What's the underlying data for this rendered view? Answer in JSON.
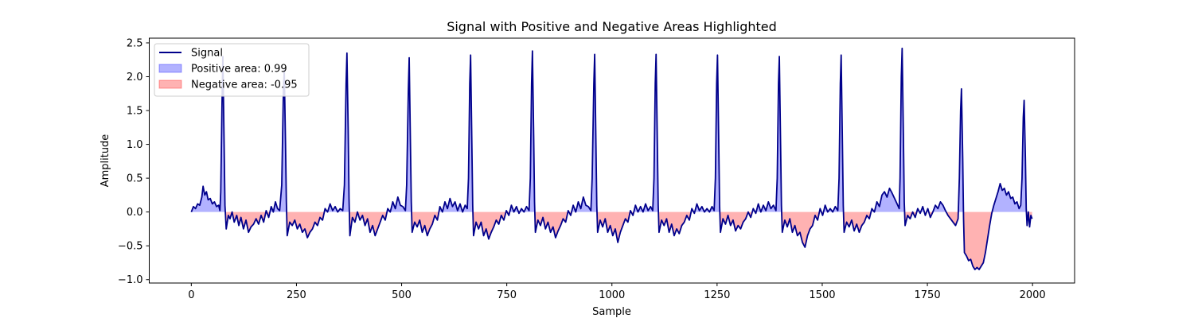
{
  "chart_data": {
    "type": "line",
    "title": "Signal with Positive and Negative Areas Highlighted",
    "xlabel": "Sample",
    "ylabel": "Amplitude",
    "xlim": [
      -100,
      2100
    ],
    "ylim": [
      -1.05,
      2.57
    ],
    "xticks": [
      0,
      250,
      500,
      750,
      1000,
      1250,
      1500,
      1750,
      2000
    ],
    "yticks": [
      -1.0,
      -0.5,
      0.0,
      0.5,
      1.0,
      1.5,
      2.0,
      2.5
    ],
    "legend_position": "upper-left",
    "colors": {
      "line": "#00008b",
      "positive_fill": "#0000ff",
      "negative_fill": "#ff0000"
    },
    "series": [
      {
        "name": "Signal",
        "kind": "line"
      },
      {
        "name": "Positive area: 0.99",
        "kind": "positive-fill"
      },
      {
        "name": "Negative area: -0.95",
        "kind": "negative-fill"
      }
    ],
    "baseline": 0,
    "points": [
      [
        0,
        0.0
      ],
      [
        5,
        0.08
      ],
      [
        10,
        0.05
      ],
      [
        15,
        0.12
      ],
      [
        20,
        0.1
      ],
      [
        25,
        0.22
      ],
      [
        28,
        0.38
      ],
      [
        32,
        0.25
      ],
      [
        36,
        0.3
      ],
      [
        40,
        0.18
      ],
      [
        45,
        0.2
      ],
      [
        50,
        0.12
      ],
      [
        55,
        0.15
      ],
      [
        60,
        0.08
      ],
      [
        65,
        0.1
      ],
      [
        68,
        0.02
      ],
      [
        70,
        0.3
      ],
      [
        73,
        1.6
      ],
      [
        75,
        2.3
      ],
      [
        78,
        1.0
      ],
      [
        80,
        0.1
      ],
      [
        83,
        -0.25
      ],
      [
        88,
        -0.05
      ],
      [
        92,
        -0.1
      ],
      [
        97,
        0.0
      ],
      [
        102,
        -0.15
      ],
      [
        108,
        -0.05
      ],
      [
        113,
        -0.2
      ],
      [
        118,
        -0.08
      ],
      [
        124,
        -0.25
      ],
      [
        130,
        -0.12
      ],
      [
        136,
        -0.3
      ],
      [
        142,
        -0.22
      ],
      [
        148,
        -0.18
      ],
      [
        154,
        -0.1
      ],
      [
        160,
        -0.18
      ],
      [
        166,
        -0.05
      ],
      [
        172,
        -0.15
      ],
      [
        178,
        0.02
      ],
      [
        184,
        -0.08
      ],
      [
        190,
        0.08
      ],
      [
        195,
        0.0
      ],
      [
        200,
        0.15
      ],
      [
        205,
        0.05
      ],
      [
        210,
        0.02
      ],
      [
        215,
        0.4
      ],
      [
        219,
        1.8
      ],
      [
        221,
        2.1
      ],
      [
        224,
        1.0
      ],
      [
        226,
        0.15
      ],
      [
        228,
        -0.35
      ],
      [
        234,
        -0.15
      ],
      [
        240,
        -0.2
      ],
      [
        246,
        -0.12
      ],
      [
        252,
        -0.25
      ],
      [
        258,
        -0.18
      ],
      [
        264,
        -0.3
      ],
      [
        270,
        -0.25
      ],
      [
        276,
        -0.38
      ],
      [
        282,
        -0.3
      ],
      [
        288,
        -0.25
      ],
      [
        294,
        -0.15
      ],
      [
        300,
        -0.2
      ],
      [
        306,
        -0.08
      ],
      [
        312,
        -0.12
      ],
      [
        318,
        0.05
      ],
      [
        324,
        0.0
      ],
      [
        330,
        0.12
      ],
      [
        336,
        0.02
      ],
      [
        342,
        0.08
      ],
      [
        348,
        0.0
      ],
      [
        354,
        0.05
      ],
      [
        360,
        0.02
      ],
      [
        364,
        0.4
      ],
      [
        368,
        1.9
      ],
      [
        370,
        2.35
      ],
      [
        373,
        1.2
      ],
      [
        375,
        0.2
      ],
      [
        377,
        -0.35
      ],
      [
        383,
        -0.08
      ],
      [
        389,
        -0.15
      ],
      [
        395,
        0.0
      ],
      [
        401,
        -0.12
      ],
      [
        407,
        -0.05
      ],
      [
        413,
        -0.2
      ],
      [
        419,
        -0.1
      ],
      [
        425,
        -0.3
      ],
      [
        431,
        -0.2
      ],
      [
        437,
        -0.35
      ],
      [
        443,
        -0.25
      ],
      [
        449,
        -0.15
      ],
      [
        455,
        -0.05
      ],
      [
        461,
        -0.12
      ],
      [
        467,
        0.05
      ],
      [
        473,
        0.0
      ],
      [
        479,
        0.15
      ],
      [
        485,
        0.05
      ],
      [
        491,
        0.22
      ],
      [
        497,
        0.1
      ],
      [
        503,
        0.08
      ],
      [
        509,
        0.02
      ],
      [
        512,
        0.4
      ],
      [
        516,
        1.8
      ],
      [
        518,
        2.28
      ],
      [
        521,
        1.0
      ],
      [
        523,
        0.15
      ],
      [
        525,
        -0.3
      ],
      [
        531,
        -0.15
      ],
      [
        537,
        -0.22
      ],
      [
        543,
        -0.12
      ],
      [
        549,
        -0.3
      ],
      [
        555,
        -0.2
      ],
      [
        561,
        -0.35
      ],
      [
        567,
        -0.25
      ],
      [
        573,
        -0.18
      ],
      [
        579,
        -0.05
      ],
      [
        585,
        -0.12
      ],
      [
        591,
        0.08
      ],
      [
        597,
        0.0
      ],
      [
        603,
        0.15
      ],
      [
        609,
        0.05
      ],
      [
        615,
        0.2
      ],
      [
        621,
        0.08
      ],
      [
        627,
        0.15
      ],
      [
        633,
        0.02
      ],
      [
        639,
        0.12
      ],
      [
        645,
        0.0
      ],
      [
        651,
        0.1
      ],
      [
        656,
        0.05
      ],
      [
        659,
        0.5
      ],
      [
        662,
        1.9
      ],
      [
        664,
        2.32
      ],
      [
        667,
        1.0
      ],
      [
        669,
        0.1
      ],
      [
        671,
        -0.35
      ],
      [
        677,
        -0.15
      ],
      [
        683,
        -0.25
      ],
      [
        689,
        -0.15
      ],
      [
        695,
        -0.35
      ],
      [
        701,
        -0.25
      ],
      [
        707,
        -0.4
      ],
      [
        713,
        -0.3
      ],
      [
        719,
        -0.22
      ],
      [
        725,
        -0.12
      ],
      [
        731,
        -0.18
      ],
      [
        737,
        -0.05
      ],
      [
        743,
        -0.12
      ],
      [
        749,
        0.02
      ],
      [
        755,
        -0.05
      ],
      [
        761,
        0.1
      ],
      [
        767,
        0.0
      ],
      [
        773,
        0.08
      ],
      [
        779,
        -0.02
      ],
      [
        785,
        0.05
      ],
      [
        791,
        0.0
      ],
      [
        797,
        0.08
      ],
      [
        803,
        0.02
      ],
      [
        806,
        0.5
      ],
      [
        809,
        1.9
      ],
      [
        811,
        2.38
      ],
      [
        814,
        1.1
      ],
      [
        816,
        0.15
      ],
      [
        818,
        -0.3
      ],
      [
        824,
        -0.12
      ],
      [
        830,
        -0.2
      ],
      [
        836,
        -0.08
      ],
      [
        842,
        -0.25
      ],
      [
        848,
        -0.15
      ],
      [
        854,
        -0.3
      ],
      [
        860,
        -0.22
      ],
      [
        866,
        -0.38
      ],
      [
        872,
        -0.28
      ],
      [
        878,
        -0.2
      ],
      [
        884,
        -0.1
      ],
      [
        890,
        -0.15
      ],
      [
        896,
        0.02
      ],
      [
        902,
        -0.05
      ],
      [
        908,
        0.1
      ],
      [
        914,
        0.0
      ],
      [
        920,
        0.15
      ],
      [
        926,
        0.05
      ],
      [
        932,
        0.22
      ],
      [
        938,
        0.1
      ],
      [
        944,
        0.08
      ],
      [
        950,
        0.02
      ],
      [
        953,
        0.5
      ],
      [
        957,
        1.9
      ],
      [
        959,
        2.33
      ],
      [
        962,
        1.0
      ],
      [
        964,
        0.1
      ],
      [
        966,
        -0.3
      ],
      [
        972,
        -0.12
      ],
      [
        978,
        -0.22
      ],
      [
        984,
        -0.1
      ],
      [
        990,
        -0.3
      ],
      [
        996,
        -0.2
      ],
      [
        1002,
        -0.35
      ],
      [
        1008,
        -0.25
      ],
      [
        1014,
        -0.45
      ],
      [
        1020,
        -0.3
      ],
      [
        1026,
        -0.2
      ],
      [
        1032,
        -0.1
      ],
      [
        1038,
        -0.15
      ],
      [
        1044,
        0.02
      ],
      [
        1050,
        -0.05
      ],
      [
        1056,
        0.1
      ],
      [
        1062,
        0.0
      ],
      [
        1068,
        0.08
      ],
      [
        1074,
        0.0
      ],
      [
        1080,
        0.12
      ],
      [
        1086,
        0.02
      ],
      [
        1092,
        0.08
      ],
      [
        1097,
        0.02
      ],
      [
        1100,
        0.5
      ],
      [
        1103,
        1.9
      ],
      [
        1105,
        2.33
      ],
      [
        1108,
        1.0
      ],
      [
        1110,
        0.1
      ],
      [
        1112,
        -0.3
      ],
      [
        1118,
        -0.12
      ],
      [
        1124,
        -0.2
      ],
      [
        1130,
        -0.1
      ],
      [
        1136,
        -0.3
      ],
      [
        1142,
        -0.18
      ],
      [
        1148,
        -0.35
      ],
      [
        1154,
        -0.25
      ],
      [
        1160,
        -0.32
      ],
      [
        1166,
        -0.2
      ],
      [
        1172,
        -0.15
      ],
      [
        1178,
        -0.05
      ],
      [
        1184,
        -0.12
      ],
      [
        1190,
        0.05
      ],
      [
        1196,
        -0.02
      ],
      [
        1202,
        0.12
      ],
      [
        1208,
        0.02
      ],
      [
        1214,
        0.08
      ],
      [
        1220,
        0.0
      ],
      [
        1226,
        0.05
      ],
      [
        1232,
        0.0
      ],
      [
        1238,
        0.08
      ],
      [
        1243,
        0.02
      ],
      [
        1246,
        0.5
      ],
      [
        1249,
        1.9
      ],
      [
        1251,
        2.32
      ],
      [
        1254,
        1.0
      ],
      [
        1256,
        0.1
      ],
      [
        1258,
        -0.3
      ],
      [
        1264,
        -0.1
      ],
      [
        1270,
        -0.18
      ],
      [
        1276,
        -0.05
      ],
      [
        1282,
        -0.2
      ],
      [
        1288,
        -0.12
      ],
      [
        1294,
        -0.28
      ],
      [
        1300,
        -0.2
      ],
      [
        1306,
        -0.25
      ],
      [
        1312,
        -0.15
      ],
      [
        1318,
        -0.1
      ],
      [
        1324,
        0.0
      ],
      [
        1330,
        -0.08
      ],
      [
        1336,
        0.05
      ],
      [
        1342,
        -0.02
      ],
      [
        1348,
        0.12
      ],
      [
        1354,
        0.0
      ],
      [
        1360,
        0.1
      ],
      [
        1366,
        0.02
      ],
      [
        1372,
        0.15
      ],
      [
        1378,
        0.05
      ],
      [
        1384,
        0.1
      ],
      [
        1390,
        0.02
      ],
      [
        1393,
        0.5
      ],
      [
        1396,
        1.9
      ],
      [
        1398,
        2.3
      ],
      [
        1401,
        1.0
      ],
      [
        1403,
        0.1
      ],
      [
        1405,
        -0.3
      ],
      [
        1411,
        -0.12
      ],
      [
        1417,
        -0.22
      ],
      [
        1423,
        -0.1
      ],
      [
        1429,
        -0.3
      ],
      [
        1435,
        -0.2
      ],
      [
        1441,
        -0.35
      ],
      [
        1447,
        -0.3
      ],
      [
        1453,
        -0.45
      ],
      [
        1459,
        -0.52
      ],
      [
        1465,
        -0.35
      ],
      [
        1471,
        -0.25
      ],
      [
        1477,
        -0.2
      ],
      [
        1483,
        -0.05
      ],
      [
        1489,
        -0.12
      ],
      [
        1495,
        0.05
      ],
      [
        1501,
        -0.05
      ],
      [
        1507,
        0.1
      ],
      [
        1513,
        0.0
      ],
      [
        1519,
        0.05
      ],
      [
        1525,
        0.0
      ],
      [
        1531,
        0.08
      ],
      [
        1537,
        0.02
      ],
      [
        1540,
        0.5
      ],
      [
        1543,
        1.9
      ],
      [
        1545,
        2.32
      ],
      [
        1548,
        1.0
      ],
      [
        1550,
        0.1
      ],
      [
        1552,
        -0.3
      ],
      [
        1558,
        -0.15
      ],
      [
        1564,
        -0.22
      ],
      [
        1570,
        -0.12
      ],
      [
        1576,
        -0.28
      ],
      [
        1582,
        -0.18
      ],
      [
        1588,
        -0.3
      ],
      [
        1594,
        -0.2
      ],
      [
        1600,
        -0.15
      ],
      [
        1606,
        -0.05
      ],
      [
        1612,
        -0.1
      ],
      [
        1618,
        0.05
      ],
      [
        1624,
        0.0
      ],
      [
        1630,
        0.15
      ],
      [
        1636,
        0.08
      ],
      [
        1642,
        0.25
      ],
      [
        1648,
        0.3
      ],
      [
        1654,
        0.22
      ],
      [
        1660,
        0.35
      ],
      [
        1666,
        0.28
      ],
      [
        1672,
        0.2
      ],
      [
        1678,
        0.12
      ],
      [
        1683,
        0.05
      ],
      [
        1685,
        0.5
      ],
      [
        1688,
        2.0
      ],
      [
        1690,
        2.42
      ],
      [
        1693,
        1.1
      ],
      [
        1695,
        0.15
      ],
      [
        1697,
        -0.2
      ],
      [
        1703,
        -0.05
      ],
      [
        1709,
        -0.1
      ],
      [
        1715,
        0.0
      ],
      [
        1721,
        -0.08
      ],
      [
        1727,
        0.05
      ],
      [
        1733,
        -0.02
      ],
      [
        1739,
        0.08
      ],
      [
        1745,
        -0.05
      ],
      [
        1751,
        0.05
      ],
      [
        1757,
        -0.08
      ],
      [
        1763,
        0.0
      ],
      [
        1769,
        0.1
      ],
      [
        1775,
        0.05
      ],
      [
        1781,
        0.15
      ],
      [
        1787,
        0.1
      ],
      [
        1793,
        0.02
      ],
      [
        1799,
        -0.05
      ],
      [
        1805,
        -0.1
      ],
      [
        1811,
        -0.15
      ],
      [
        1817,
        -0.2
      ],
      [
        1823,
        -0.1
      ],
      [
        1826,
        0.5
      ],
      [
        1829,
        1.5
      ],
      [
        1831,
        1.82
      ],
      [
        1834,
        0.8
      ],
      [
        1836,
        -0.1
      ],
      [
        1838,
        -0.6
      ],
      [
        1843,
        -0.65
      ],
      [
        1848,
        -0.72
      ],
      [
        1853,
        -0.7
      ],
      [
        1858,
        -0.8
      ],
      [
        1863,
        -0.85
      ],
      [
        1868,
        -0.82
      ],
      [
        1873,
        -0.85
      ],
      [
        1878,
        -0.8
      ],
      [
        1883,
        -0.75
      ],
      [
        1888,
        -0.6
      ],
      [
        1893,
        -0.4
      ],
      [
        1898,
        -0.2
      ],
      [
        1903,
        -0.02
      ],
      [
        1908,
        0.1
      ],
      [
        1913,
        0.2
      ],
      [
        1918,
        0.3
      ],
      [
        1923,
        0.42
      ],
      [
        1928,
        0.32
      ],
      [
        1933,
        0.35
      ],
      [
        1938,
        0.25
      ],
      [
        1943,
        0.3
      ],
      [
        1948,
        0.2
      ],
      [
        1953,
        0.22
      ],
      [
        1958,
        0.12
      ],
      [
        1963,
        0.15
      ],
      [
        1968,
        0.05
      ],
      [
        1972,
        0.1
      ],
      [
        1975,
        0.5
      ],
      [
        1978,
        1.4
      ],
      [
        1980,
        1.65
      ],
      [
        1983,
        0.8
      ],
      [
        1985,
        0.05
      ],
      [
        1987,
        -0.2
      ],
      [
        1990,
        0.0
      ],
      [
        1993,
        -0.22
      ],
      [
        1996,
        -0.05
      ],
      [
        1999,
        -0.1
      ]
    ]
  }
}
